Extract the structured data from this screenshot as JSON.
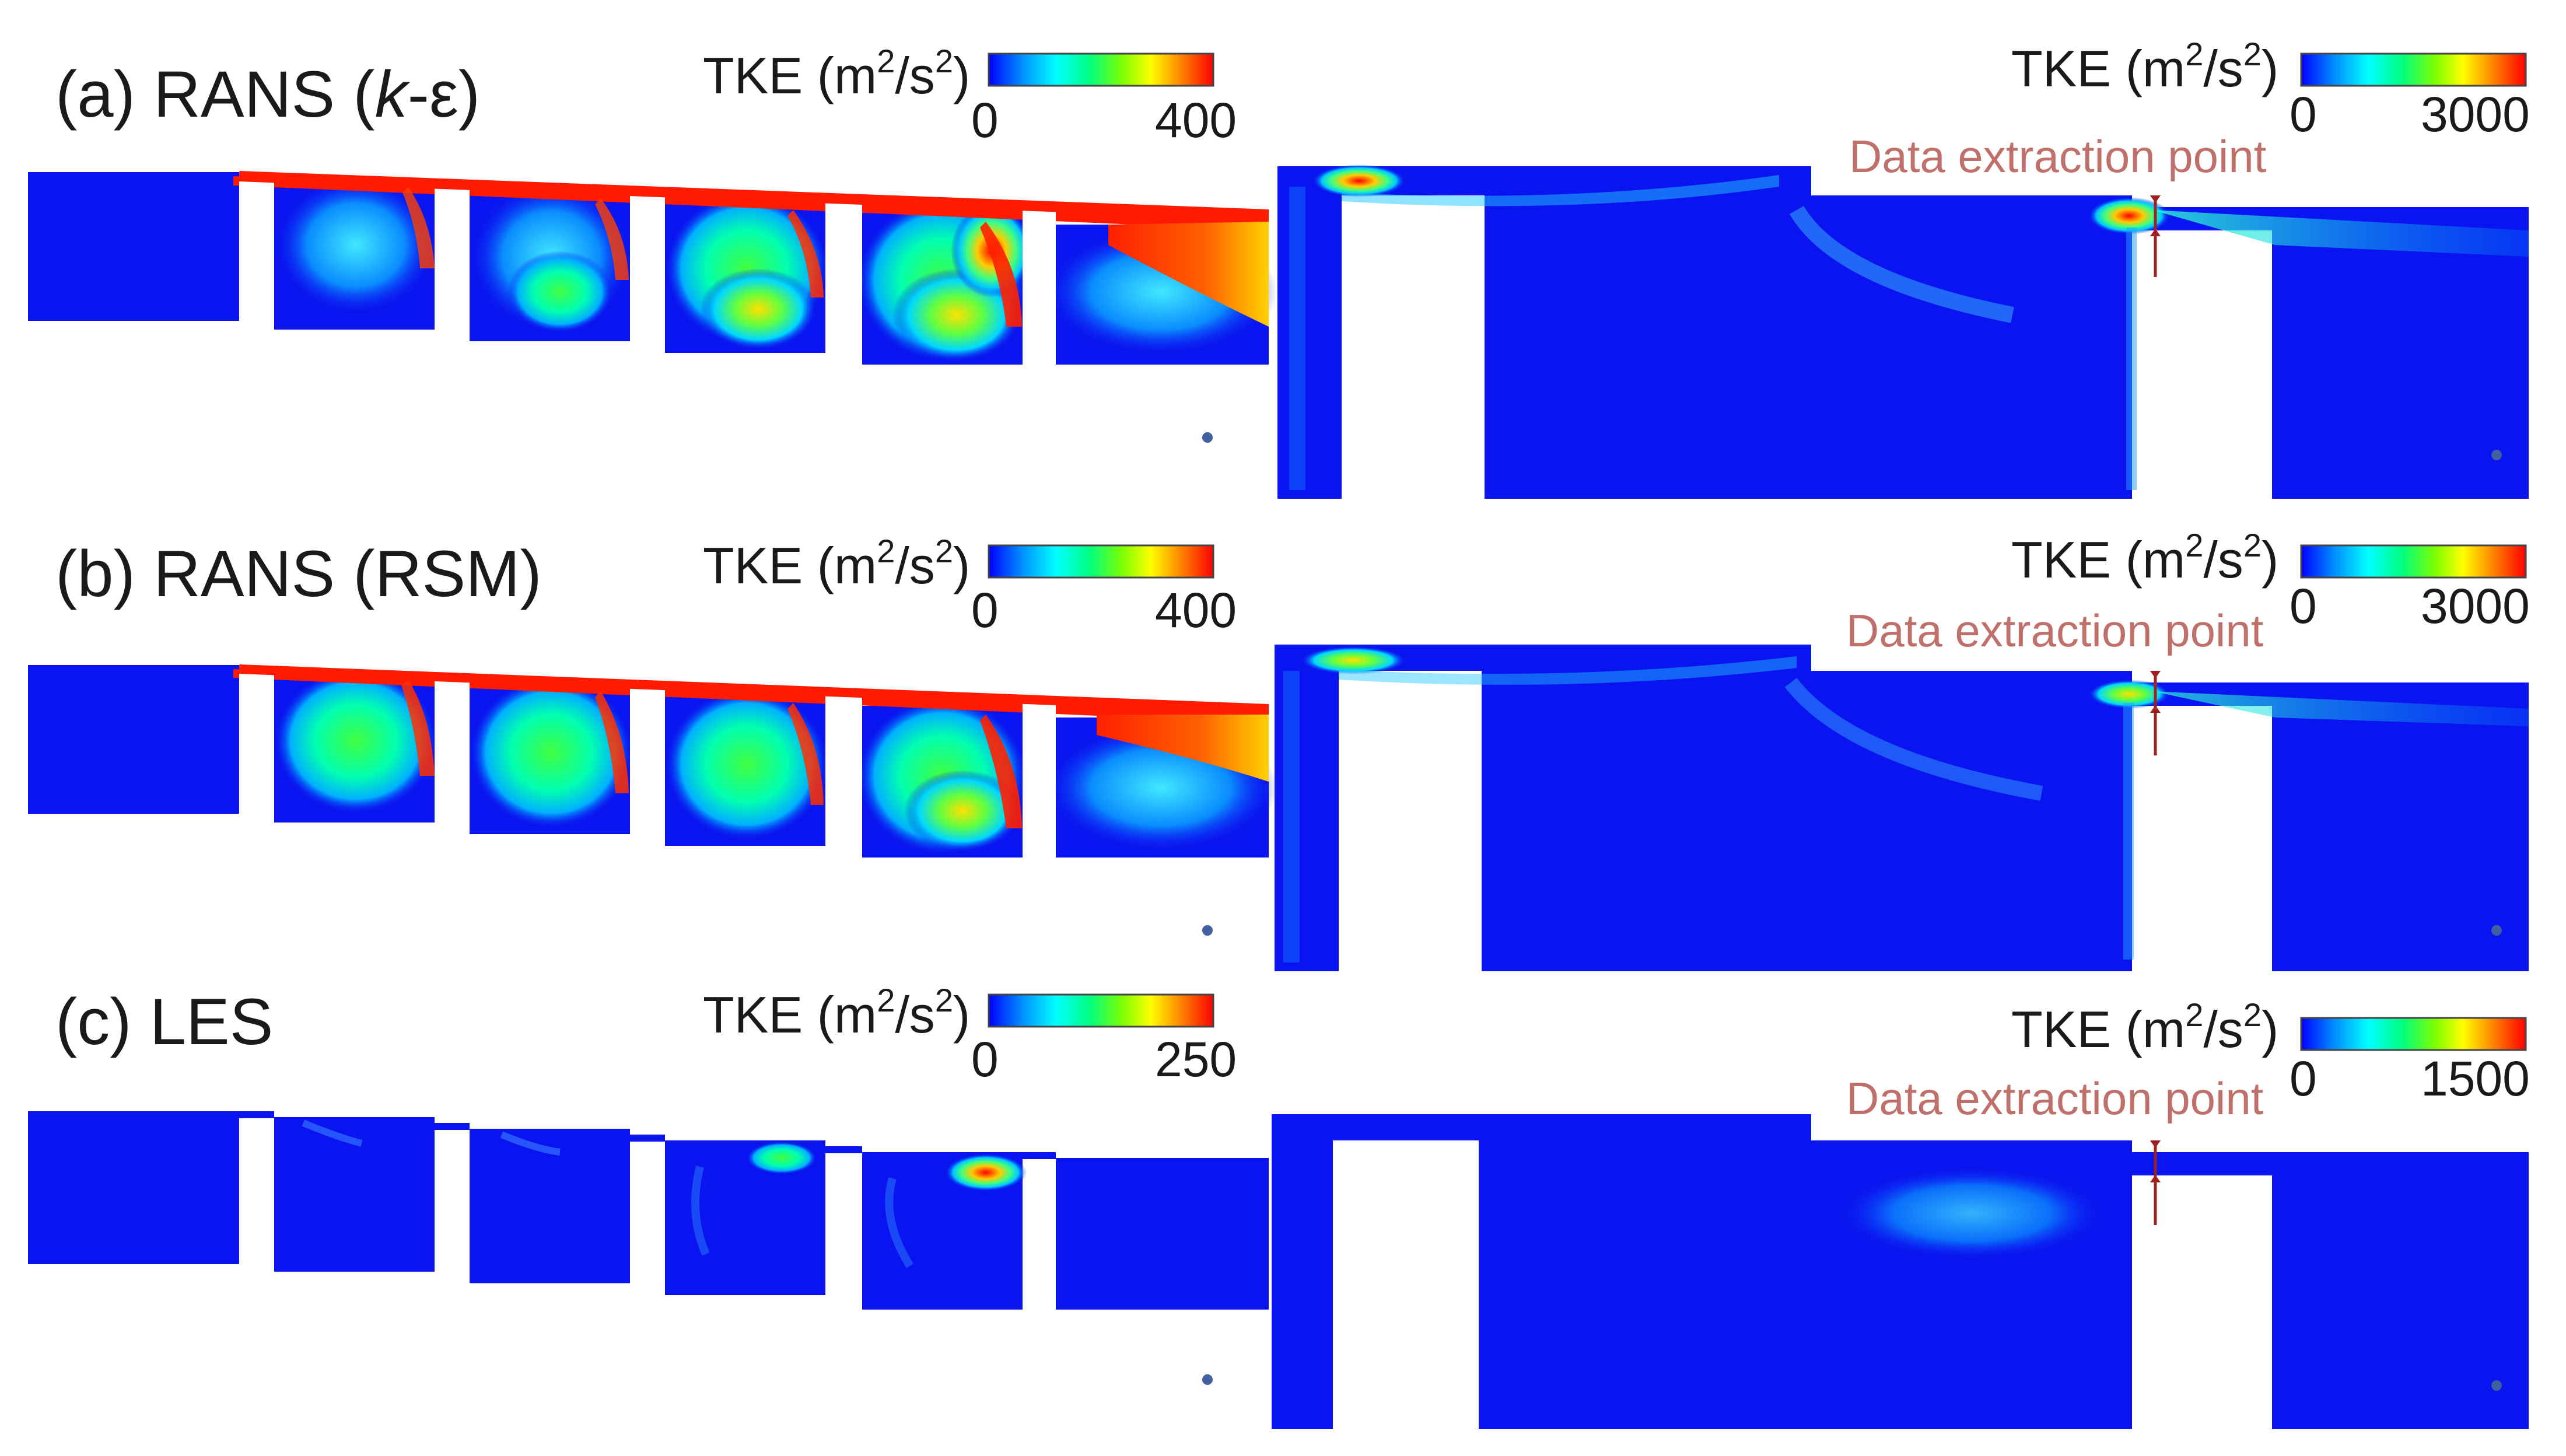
{
  "panels": [
    {
      "label_prefix": "(a)  RANS (",
      "label_italic": "k",
      "label_suffix": "-ε)",
      "left_bar": {
        "title": "TKE (m",
        "power": "2",
        "unit_mid": "/s",
        "unit_end": ")",
        "min": "0",
        "max": "400"
      },
      "right_bar": {
        "title": "TKE (m",
        "power": "2",
        "unit_mid": "/s",
        "unit_end": ")",
        "min": "0",
        "max": "3000"
      },
      "annotation": "Data extraction point"
    },
    {
      "label_prefix": "(b)  RANS (RSM)",
      "label_italic": "",
      "label_suffix": "",
      "left_bar": {
        "title": "TKE (m",
        "power": "2",
        "unit_mid": "/s",
        "unit_end": ")",
        "min": "0",
        "max": "400"
      },
      "right_bar": {
        "title": "TKE (m",
        "power": "2",
        "unit_mid": "/s",
        "unit_end": ")",
        "min": "0",
        "max": "3000"
      },
      "annotation": "Data extraction point"
    },
    {
      "label_prefix": "(c)  LES",
      "label_italic": "",
      "label_suffix": "",
      "left_bar": {
        "title": "TKE (m",
        "power": "2",
        "unit_mid": "/s",
        "unit_end": ")",
        "min": "0",
        "max": "250"
      },
      "right_bar": {
        "title": "TKE (m",
        "power": "2",
        "unit_mid": "/s",
        "unit_end": ")",
        "min": "0",
        "max": "1500"
      },
      "annotation": "Data extraction point"
    }
  ],
  "colors": {
    "field_base": "#0a14f0",
    "jet_red": "#ff1a00",
    "annotation": "#c0706a",
    "marker": "#a02020",
    "colormap": [
      "#0000ff",
      "#00a0ff",
      "#00ffff",
      "#00ff80",
      "#80ff00",
      "#ffff00",
      "#ff8000",
      "#ff0000"
    ]
  }
}
